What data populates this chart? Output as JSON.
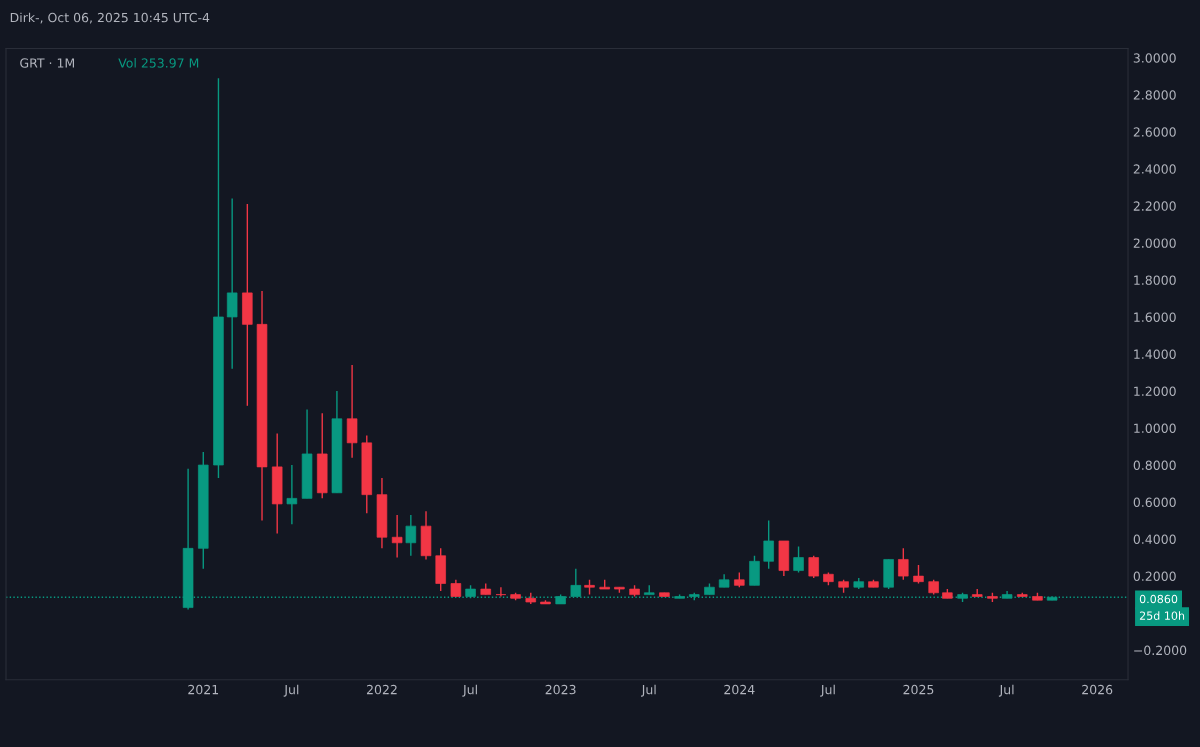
{
  "chart_data": {
    "type": "candlestick",
    "title": "GRT · 1M",
    "annotations": [
      "Dirk-, Oct 06, 2025 10:45 UTC-4",
      "Vol 253.97 M",
      "25d 10h"
    ],
    "x": [
      "2020-12",
      "2021-01",
      "2021-02",
      "2021-03",
      "2021-04",
      "2021-05",
      "2021-06",
      "2021-07",
      "2021-08",
      "2021-09",
      "2021-10",
      "2021-11",
      "2021-12",
      "2022-01",
      "2022-02",
      "2022-03",
      "2022-04",
      "2022-05",
      "2022-06",
      "2022-07",
      "2022-08",
      "2022-09",
      "2022-10",
      "2022-11",
      "2022-12",
      "2023-01",
      "2023-02",
      "2023-03",
      "2023-04",
      "2023-05",
      "2023-06",
      "2023-07",
      "2023-08",
      "2023-09",
      "2023-10",
      "2023-11",
      "2023-12",
      "2024-01",
      "2024-02",
      "2024-03",
      "2024-04",
      "2024-05",
      "2024-06",
      "2024-07",
      "2024-08",
      "2024-09",
      "2024-10",
      "2024-11",
      "2024-12",
      "2025-01",
      "2025-02",
      "2025-03",
      "2025-04",
      "2025-05",
      "2025-06",
      "2025-07",
      "2025-08",
      "2025-09",
      "2025-10"
    ],
    "ohlc": [
      [
        0.03,
        0.78,
        0.02,
        0.35
      ],
      [
        0.35,
        0.87,
        0.24,
        0.8
      ],
      [
        0.8,
        2.89,
        0.73,
        1.6
      ],
      [
        1.6,
        2.24,
        1.32,
        1.73
      ],
      [
        1.73,
        2.21,
        1.12,
        1.56
      ],
      [
        1.56,
        1.74,
        0.5,
        0.79
      ],
      [
        0.79,
        0.97,
        0.43,
        0.59
      ],
      [
        0.59,
        0.8,
        0.48,
        0.62
      ],
      [
        0.62,
        1.1,
        0.62,
        0.86
      ],
      [
        0.86,
        1.08,
        0.62,
        0.65
      ],
      [
        0.65,
        1.2,
        0.65,
        1.05
      ],
      [
        1.05,
        1.34,
        0.84,
        0.92
      ],
      [
        0.92,
        0.96,
        0.54,
        0.64
      ],
      [
        0.64,
        0.73,
        0.35,
        0.41
      ],
      [
        0.41,
        0.53,
        0.3,
        0.38
      ],
      [
        0.38,
        0.53,
        0.31,
        0.47
      ],
      [
        0.47,
        0.55,
        0.29,
        0.31
      ],
      [
        0.31,
        0.35,
        0.12,
        0.16
      ],
      [
        0.16,
        0.18,
        0.09,
        0.09
      ],
      [
        0.09,
        0.15,
        0.08,
        0.13
      ],
      [
        0.13,
        0.16,
        0.1,
        0.1
      ],
      [
        0.1,
        0.14,
        0.09,
        0.1
      ],
      [
        0.1,
        0.11,
        0.07,
        0.08
      ],
      [
        0.08,
        0.11,
        0.05,
        0.06
      ],
      [
        0.06,
        0.07,
        0.05,
        0.05
      ],
      [
        0.05,
        0.1,
        0.05,
        0.09
      ],
      [
        0.09,
        0.24,
        0.09,
        0.15
      ],
      [
        0.15,
        0.18,
        0.1,
        0.14
      ],
      [
        0.14,
        0.18,
        0.13,
        0.13
      ],
      [
        0.14,
        0.14,
        0.11,
        0.13
      ],
      [
        0.13,
        0.15,
        0.09,
        0.1
      ],
      [
        0.1,
        0.15,
        0.1,
        0.11
      ],
      [
        0.11,
        0.11,
        0.09,
        0.09
      ],
      [
        0.08,
        0.1,
        0.08,
        0.09
      ],
      [
        0.09,
        0.11,
        0.07,
        0.1
      ],
      [
        0.1,
        0.16,
        0.1,
        0.14
      ],
      [
        0.14,
        0.21,
        0.14,
        0.18
      ],
      [
        0.18,
        0.22,
        0.14,
        0.15
      ],
      [
        0.15,
        0.31,
        0.15,
        0.28
      ],
      [
        0.28,
        0.5,
        0.24,
        0.39
      ],
      [
        0.39,
        0.39,
        0.2,
        0.23
      ],
      [
        0.23,
        0.36,
        0.22,
        0.3
      ],
      [
        0.3,
        0.31,
        0.19,
        0.2
      ],
      [
        0.21,
        0.22,
        0.15,
        0.17
      ],
      [
        0.17,
        0.18,
        0.11,
        0.14
      ],
      [
        0.14,
        0.19,
        0.13,
        0.17
      ],
      [
        0.17,
        0.18,
        0.14,
        0.14
      ],
      [
        0.14,
        0.29,
        0.13,
        0.29
      ],
      [
        0.29,
        0.35,
        0.18,
        0.2
      ],
      [
        0.2,
        0.26,
        0.16,
        0.17
      ],
      [
        0.17,
        0.18,
        0.1,
        0.11
      ],
      [
        0.11,
        0.13,
        0.08,
        0.08
      ],
      [
        0.08,
        0.11,
        0.06,
        0.1
      ],
      [
        0.1,
        0.13,
        0.09,
        0.09
      ],
      [
        0.09,
        0.11,
        0.06,
        0.08
      ],
      [
        0.08,
        0.12,
        0.08,
        0.1
      ],
      [
        0.1,
        0.11,
        0.09,
        0.09
      ],
      [
        0.09,
        0.11,
        0.07,
        0.07
      ],
      [
        0.07,
        0.09,
        0.07,
        0.086
      ]
    ],
    "colors": [
      "#089981",
      "#089981",
      "#089981",
      "#089981",
      "#f23645",
      "#f23645",
      "#f23645",
      "#089981",
      "#089981",
      "#f23645",
      "#089981",
      "#f23645",
      "#f23645",
      "#f23645",
      "#f23645",
      "#089981",
      "#f23645",
      "#f23645",
      "#f23645",
      "#089981",
      "#f23645",
      "#f23645",
      "#f23645",
      "#f23645",
      "#f23645",
      "#089981",
      "#089981",
      "#f23645",
      "#f23645",
      "#f23645",
      "#f23645",
      "#089981",
      "#f23645",
      "#089981",
      "#089981",
      "#089981",
      "#089981",
      "#f23645",
      "#089981",
      "#089981",
      "#f23645",
      "#089981",
      "#f23645",
      "#f23645",
      "#f23645",
      "#089981",
      "#f23645",
      "#089981",
      "#f23645",
      "#f23645",
      "#f23645",
      "#f23645",
      "#089981",
      "#f23645",
      "#f23645",
      "#089981",
      "#f23645",
      "#f23645",
      "#089981"
    ],
    "xlim": [
      "2019-11-25",
      "2026-03-05"
    ],
    "xticks": [
      {
        "value": "2021-01",
        "label": "2021"
      },
      {
        "value": "2021-07",
        "label": "Jul"
      },
      {
        "value": "2022-01",
        "label": "2022"
      },
      {
        "value": "2022-07",
        "label": "Jul"
      },
      {
        "value": "2023-01",
        "label": "2023"
      },
      {
        "value": "2023-07",
        "label": "Jul"
      },
      {
        "value": "2024-01",
        "label": "2024"
      },
      {
        "value": "2024-07",
        "label": "Jul"
      },
      {
        "value": "2025-01",
        "label": "2025"
      },
      {
        "value": "2025-07",
        "label": "Jul"
      },
      {
        "value": "2026-01",
        "label": "2026"
      }
    ],
    "ylim": [
      -0.36,
      3.05
    ],
    "yticks": [
      {
        "value": -0.2,
        "label": "−0.2000"
      },
      {
        "value": 0.2,
        "label": "0.2000"
      },
      {
        "value": 0.4,
        "label": "0.4000"
      },
      {
        "value": 0.6,
        "label": "0.6000"
      },
      {
        "value": 0.8,
        "label": "0.8000"
      },
      {
        "value": 1.0,
        "label": "1.0000"
      },
      {
        "value": 1.2,
        "label": "1.2000"
      },
      {
        "value": 1.4,
        "label": "1.4000"
      },
      {
        "value": 1.6,
        "label": "1.6000"
      },
      {
        "value": 1.8,
        "label": "1.8000"
      },
      {
        "value": 2.0,
        "label": "2.0000"
      },
      {
        "value": 2.2,
        "label": "2.2000"
      },
      {
        "value": 2.4,
        "label": "2.4000"
      },
      {
        "value": 2.6,
        "label": "2.6000"
      },
      {
        "value": 2.8,
        "label": "2.8000"
      },
      {
        "value": 3.0,
        "label": "3.0000"
      }
    ],
    "ref_lines": [
      {
        "axis": "y",
        "value": 0.086,
        "label": "0.0860",
        "color": "#089981",
        "line_style": "dotted"
      }
    ],
    "grid": false
  }
}
